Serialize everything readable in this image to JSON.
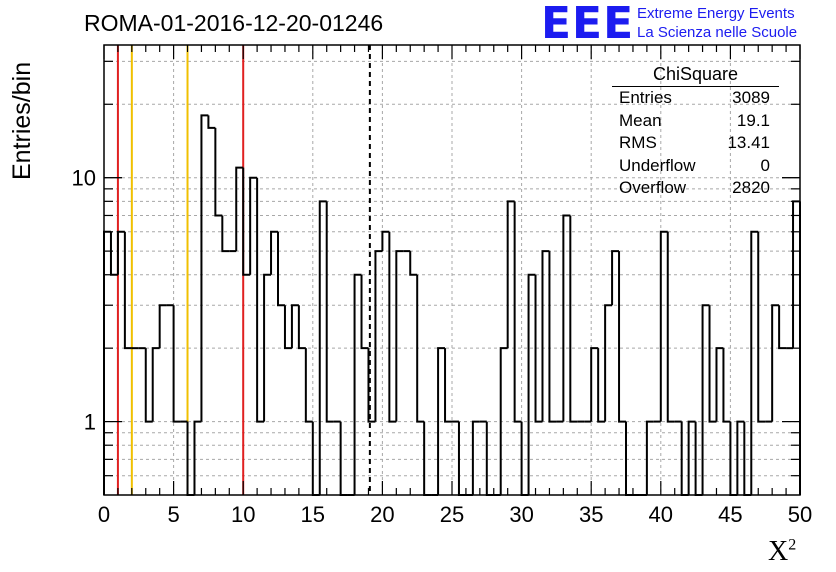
{
  "title": "ROMA-01-2016-12-20-01246",
  "logo": {
    "mark": "EEE",
    "line1": "Extreme Energy Events",
    "line2": "La Scienza nelle Scuole",
    "color": "#1c1cf0"
  },
  "stats": {
    "title": "ChiSquare",
    "rows": [
      {
        "label": "Entries",
        "value": "3089"
      },
      {
        "label": "Mean",
        "value": "19.1"
      },
      {
        "label": "RMS",
        "value": "13.41"
      },
      {
        "label": "Underflow",
        "value": "0"
      },
      {
        "label": "Overflow",
        "value": "2820"
      }
    ]
  },
  "chart_data": {
    "type": "histogram",
    "xlabel": "X",
    "xlabel_superscript": "2",
    "ylabel": "Entries/bin",
    "xlim": [
      0,
      50
    ],
    "ylim": [
      0.5,
      35
    ],
    "y_scale": "log",
    "grid": true,
    "bin_width": 0.5,
    "x_ticks": [
      0,
      5,
      10,
      15,
      20,
      25,
      30,
      35,
      40,
      45,
      50
    ],
    "y_ticks": [
      1,
      10
    ],
    "values": [
      6,
      4,
      6,
      2,
      2,
      2,
      1,
      2,
      3,
      3,
      1,
      1,
      0,
      1,
      18,
      16,
      7,
      5,
      5,
      11,
      4,
      10,
      1,
      4,
      6,
      3,
      2,
      3,
      2,
      1,
      0,
      8,
      1,
      1,
      0,
      0,
      4,
      2,
      1,
      5,
      6,
      1,
      5,
      5,
      4,
      1,
      0,
      0,
      2,
      1,
      1,
      0,
      0,
      1,
      1,
      0,
      0,
      2,
      8,
      1,
      0,
      4,
      1,
      5,
      1,
      1,
      7,
      1,
      1,
      1,
      2,
      1,
      3,
      5,
      1,
      0,
      0,
      0,
      1,
      1,
      6,
      1,
      1,
      0,
      1,
      0,
      3,
      1,
      2,
      1,
      0,
      1,
      0,
      6,
      1,
      1,
      3,
      2,
      2,
      8
    ],
    "vertical_lines": [
      {
        "x": 1,
        "color": "#e02020"
      },
      {
        "x": 2,
        "color": "#f0c000"
      },
      {
        "x": 6,
        "color": "#f0c000"
      },
      {
        "x": 10,
        "color": "#e02020"
      },
      {
        "x": 19.1,
        "color": "#000000",
        "style": "dashed"
      }
    ]
  }
}
